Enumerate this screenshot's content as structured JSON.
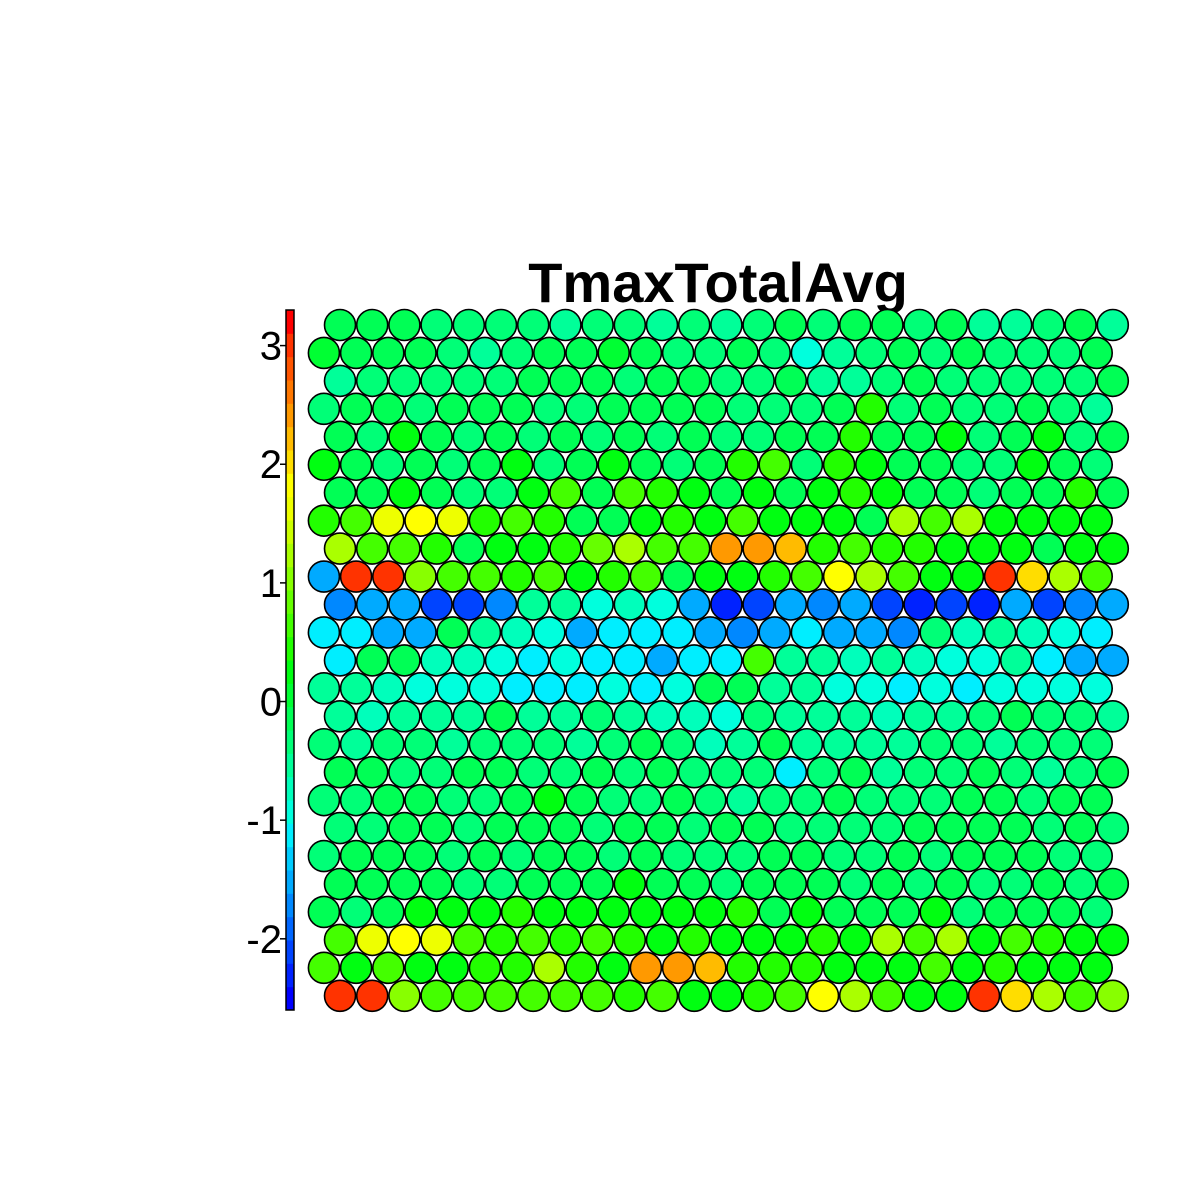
{
  "chart_data": {
    "type": "heatmap",
    "subtype": "hexagonal-som-component-plane",
    "title": "TmaxTotalAvg",
    "grid": false,
    "legend": "colorbar-left",
    "colorbar": {
      "range": [
        -2.6,
        3.3
      ],
      "ticks": [
        3,
        2,
        1,
        0,
        -1,
        -2
      ],
      "tick_labels": [
        "3",
        "2",
        "1",
        "0",
        "-1",
        "-2"
      ],
      "bands": [
        "#0000ff",
        "#0022ff",
        "#0044ff",
        "#0066ff",
        "#0088ff",
        "#00aaff",
        "#00ccff",
        "#00eeff",
        "#00ffdd",
        "#00ffbb",
        "#00ff99",
        "#00ff77",
        "#00ff55",
        "#00ff33",
        "#00ff11",
        "#22ff00",
        "#44ff00",
        "#66ff00",
        "#88ff00",
        "#aaff00",
        "#ccff00",
        "#eeff00",
        "#ffff00",
        "#ffdd00",
        "#ffbb00",
        "#ff9900",
        "#ff7700",
        "#ff5500",
        "#ff3300",
        "#ff0000"
      ]
    },
    "grid_rows": 25,
    "grid_cols": 25,
    "values": [
      [
        -0.1,
        -0.1,
        -0.1,
        -0.3,
        -0.3,
        -0.3,
        -0.3,
        -0.6,
        -0.3,
        -0.3,
        -0.5,
        -0.3,
        -0.6,
        -0.3,
        -0.1,
        -0.3,
        -0.1,
        -0.1,
        -0.3,
        -0.1,
        -0.6,
        -0.6,
        -0.3,
        -0.1,
        -0.6
      ],
      [
        0.0,
        -0.1,
        -0.1,
        -0.1,
        -0.3,
        -0.5,
        -0.3,
        -0.1,
        -0.1,
        0.0,
        -0.1,
        -0.3,
        -0.3,
        -0.1,
        -0.3,
        -1.0,
        -0.5,
        -0.3,
        -0.1,
        -0.3,
        -0.1,
        -0.3,
        -0.3,
        -0.3,
        -0.1
      ],
      [
        -0.5,
        -0.3,
        -0.3,
        -0.3,
        -0.3,
        -0.3,
        -0.1,
        -0.1,
        -0.1,
        -0.3,
        -0.1,
        -0.1,
        -0.3,
        -0.3,
        -0.1,
        -0.5,
        -0.6,
        -0.3,
        -0.1,
        -0.3,
        -0.3,
        -0.3,
        -0.3,
        -0.3,
        -0.1
      ],
      [
        -0.3,
        -0.1,
        -0.1,
        -0.3,
        -0.1,
        -0.1,
        -0.1,
        -0.3,
        -0.3,
        -0.1,
        -0.1,
        -0.1,
        -0.1,
        -0.3,
        -0.3,
        -0.3,
        -0.1,
        0.4,
        -0.3,
        -0.1,
        -0.3,
        -0.3,
        -0.1,
        -0.3,
        -0.5
      ],
      [
        -0.1,
        -0.3,
        0.2,
        -0.1,
        -0.3,
        -0.1,
        -0.3,
        -0.1,
        -0.3,
        -0.1,
        -0.3,
        -0.1,
        -0.3,
        -0.3,
        -0.1,
        -0.1,
        0.4,
        -0.1,
        -0.1,
        0.2,
        -0.3,
        -0.1,
        0.2,
        -0.3,
        -0.1
      ],
      [
        0.2,
        -0.1,
        -0.3,
        -0.1,
        -0.3,
        -0.1,
        0.2,
        -0.3,
        -0.1,
        0.2,
        -0.1,
        -0.3,
        -0.1,
        0.4,
        0.6,
        -0.3,
        0.4,
        0.2,
        -0.1,
        -0.1,
        -0.3,
        -0.3,
        0.2,
        -0.1,
        -0.3
      ],
      [
        -0.1,
        -0.1,
        0.2,
        -0.1,
        -0.3,
        -0.3,
        0.2,
        0.6,
        -0.1,
        0.6,
        0.4,
        0.2,
        -0.1,
        0.2,
        -0.1,
        0.2,
        0.4,
        0.2,
        -0.1,
        -0.1,
        -0.3,
        -0.1,
        -0.1,
        0.4,
        -0.1
      ],
      [
        0.4,
        0.6,
        1.7,
        1.8,
        1.7,
        0.4,
        0.6,
        0.4,
        -0.1,
        -0.1,
        0.2,
        0.4,
        0.2,
        0.6,
        0.2,
        0.2,
        0.2,
        -0.1,
        1.2,
        0.6,
        1.2,
        0.2,
        0.2,
        0.2,
        0.2
      ],
      [
        1.2,
        0.6,
        0.6,
        0.4,
        -0.1,
        0.2,
        0.2,
        0.4,
        0.8,
        1.2,
        0.6,
        0.6,
        2.4,
        2.4,
        2.3,
        0.4,
        0.6,
        0.4,
        0.4,
        0.2,
        0.2,
        0.2,
        -0.1,
        0.2,
        0.2
      ],
      [
        -1.6,
        3.0,
        3.0,
        1.1,
        0.6,
        0.6,
        0.4,
        0.6,
        0.2,
        0.4,
        0.6,
        -0.1,
        0.2,
        0.2,
        0.4,
        0.6,
        1.9,
        1.2,
        0.6,
        0.2,
        0.2,
        3.0,
        2.0,
        1.2,
        0.6
      ],
      [
        -1.8,
        -1.6,
        -1.6,
        -2.1,
        -2.2,
        -1.8,
        -0.6,
        -0.6,
        -1.0,
        -0.8,
        -1.0,
        -1.6,
        -2.3,
        -2.2,
        -1.6,
        -1.8,
        -1.6,
        -2.1,
        -2.3,
        -2.1,
        -2.4,
        -1.6,
        -2.1,
        -1.8,
        -1.6
      ],
      [
        -1.2,
        -1.2,
        -1.6,
        -1.6,
        -0.1,
        -0.6,
        -0.8,
        -1.0,
        -1.6,
        -1.2,
        -1.2,
        -1.2,
        -1.6,
        -1.8,
        -1.6,
        -1.2,
        -1.6,
        -1.6,
        -1.8,
        -0.3,
        -0.8,
        -0.6,
        -0.8,
        -1.0,
        -1.2
      ],
      [
        -1.2,
        -0.1,
        -0.1,
        -0.8,
        -0.8,
        -1.0,
        -1.2,
        -1.0,
        -1.2,
        -1.2,
        -1.6,
        -1.2,
        -1.2,
        0.6,
        -0.6,
        -0.6,
        -0.8,
        -0.6,
        -0.8,
        -1.0,
        -1.0,
        -0.6,
        -1.2,
        -1.6,
        -1.6
      ],
      [
        -0.5,
        -0.6,
        -0.8,
        -1.0,
        -1.0,
        -1.0,
        -1.2,
        -1.2,
        -1.2,
        -1.0,
        -1.2,
        -1.0,
        -0.1,
        -0.1,
        -0.6,
        -0.6,
        -1.0,
        -1.0,
        -1.2,
        -1.0,
        -1.2,
        -1.0,
        -1.0,
        -1.0,
        -1.0
      ],
      [
        -0.6,
        -0.8,
        -0.6,
        -0.6,
        -0.6,
        -0.1,
        -0.6,
        -0.5,
        -0.3,
        -0.6,
        -0.8,
        -0.8,
        -1.0,
        -0.3,
        -0.6,
        -0.6,
        -0.6,
        -0.8,
        -0.6,
        -0.6,
        -0.3,
        -0.1,
        -0.3,
        -0.3,
        -0.6
      ],
      [
        -0.3,
        -0.6,
        -0.3,
        -0.3,
        -0.6,
        -0.3,
        -0.3,
        -0.3,
        -0.6,
        -0.3,
        -0.1,
        -0.3,
        -0.8,
        -0.6,
        -0.1,
        -0.6,
        -0.6,
        -0.5,
        -0.6,
        -0.3,
        -0.3,
        -0.6,
        -0.3,
        -0.3,
        -0.3
      ],
      [
        -0.1,
        -0.1,
        -0.3,
        -0.3,
        -0.1,
        -0.1,
        -0.3,
        -0.3,
        -0.1,
        -0.3,
        -0.1,
        -0.3,
        -0.3,
        -0.3,
        -1.2,
        -0.3,
        -0.1,
        -0.6,
        -0.3,
        -0.3,
        -0.1,
        -0.3,
        -0.5,
        -0.3,
        -0.1
      ],
      [
        -0.3,
        -0.3,
        -0.1,
        -0.1,
        -0.3,
        -0.3,
        -0.1,
        0.2,
        -0.1,
        -0.3,
        -0.3,
        -0.1,
        -0.3,
        -0.6,
        -0.3,
        -0.3,
        -0.1,
        -0.3,
        -0.3,
        -0.3,
        -0.1,
        -0.1,
        -0.3,
        -0.1,
        -0.1
      ],
      [
        -0.3,
        -0.3,
        -0.1,
        -0.1,
        -0.3,
        -0.1,
        -0.1,
        -0.1,
        -0.3,
        -0.1,
        -0.1,
        -0.3,
        -0.1,
        -0.1,
        -0.3,
        -0.3,
        -0.3,
        -0.3,
        -0.1,
        -0.1,
        -0.1,
        -0.1,
        -0.3,
        -0.1,
        -0.3
      ],
      [
        -0.3,
        -0.1,
        -0.1,
        -0.1,
        -0.3,
        -0.1,
        -0.3,
        -0.1,
        -0.1,
        -0.3,
        -0.1,
        -0.3,
        -0.3,
        -0.3,
        -0.1,
        -0.1,
        -0.3,
        -0.3,
        -0.1,
        -0.3,
        -0.1,
        -0.1,
        -0.1,
        -0.3,
        -0.3
      ],
      [
        -0.1,
        -0.1,
        -0.1,
        -0.1,
        -0.3,
        -0.3,
        -0.1,
        -0.1,
        -0.1,
        0.2,
        -0.1,
        -0.1,
        -0.3,
        -0.1,
        -0.1,
        -0.1,
        -0.3,
        -0.1,
        -0.3,
        -0.1,
        -0.3,
        -0.3,
        -0.1,
        -0.3,
        -0.1
      ],
      [
        -0.1,
        -0.3,
        -0.1,
        0.2,
        0.2,
        0.2,
        0.4,
        0.2,
        0.2,
        0.2,
        0.2,
        0.2,
        0.2,
        0.4,
        -0.1,
        0.2,
        -0.1,
        -0.1,
        -0.1,
        0.2,
        -0.3,
        -0.1,
        -0.1,
        -0.1,
        -0.3
      ],
      [
        0.6,
        1.7,
        1.8,
        1.7,
        0.6,
        0.4,
        0.6,
        0.4,
        0.6,
        0.4,
        0.2,
        0.4,
        0.2,
        0.2,
        0.2,
        0.4,
        0.2,
        1.2,
        0.6,
        1.2,
        0.2,
        0.6,
        0.4,
        0.2,
        0.2
      ],
      [
        0.6,
        0.2,
        0.6,
        0.2,
        0.2,
        0.4,
        0.4,
        1.2,
        0.4,
        0.2,
        2.4,
        2.4,
        2.3,
        0.4,
        0.4,
        0.4,
        0.2,
        0.2,
        0.2,
        0.6,
        0.2,
        0.4,
        0.2,
        0.2,
        0.2
      ],
      [
        3.0,
        3.0,
        1.1,
        0.6,
        0.6,
        0.6,
        0.6,
        0.6,
        0.6,
        0.4,
        0.6,
        0.2,
        0.2,
        0.4,
        0.6,
        1.9,
        1.2,
        0.6,
        0.2,
        0.2,
        3.0,
        2.0,
        1.2,
        0.6,
        1.1
      ]
    ]
  }
}
